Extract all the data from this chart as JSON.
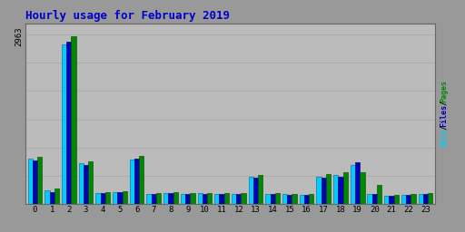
{
  "title": "Hourly usage for February 2019",
  "ytick_label": "2963",
  "hours": [
    0,
    1,
    2,
    3,
    4,
    5,
    6,
    7,
    8,
    9,
    10,
    11,
    12,
    13,
    14,
    15,
    16,
    17,
    18,
    19,
    20,
    21,
    22,
    23
  ],
  "hits": [
    800,
    240,
    2830,
    720,
    200,
    210,
    790,
    185,
    200,
    185,
    190,
    185,
    185,
    490,
    185,
    175,
    170,
    490,
    510,
    700,
    185,
    155,
    165,
    180
  ],
  "files": [
    780,
    220,
    2870,
    700,
    195,
    205,
    810,
    180,
    195,
    180,
    185,
    180,
    180,
    470,
    180,
    170,
    165,
    470,
    490,
    740,
    180,
    150,
    160,
    175
  ],
  "pages": [
    830,
    270,
    2963,
    760,
    215,
    230,
    850,
    195,
    215,
    195,
    200,
    195,
    195,
    510,
    195,
    185,
    180,
    540,
    570,
    565,
    340,
    165,
    180,
    195
  ],
  "color_pages": "#008800",
  "color_files": "#0000bb",
  "color_hits": "#00ccff",
  "bar_edge_hits": "#006688",
  "bar_edge_files": "#000055",
  "bar_edge_pages": "#004400",
  "bg_plot": "#bbbbbb",
  "bg_fig": "#999999",
  "title_color": "#0000cc",
  "ylabel_color_pages": "#008800",
  "ylabel_color_files": "#0000bb",
  "ylabel_color_hits": "#00ccff",
  "grid_color": "#aaaaaa",
  "ymax": 3200,
  "bar_width": 0.28
}
